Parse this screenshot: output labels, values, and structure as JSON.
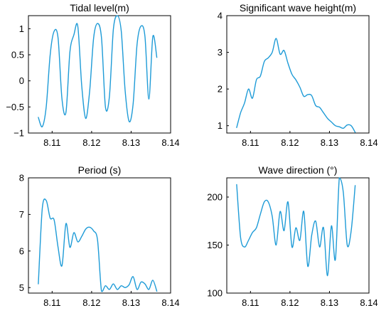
{
  "figure": {
    "line_color": "#1e9bd7"
  },
  "chart_data": [
    {
      "type": "line",
      "title": "Tidal level(m)",
      "xlim": [
        8.104,
        8.14
      ],
      "ylim": [
        -1.0,
        1.25
      ],
      "xticks": [
        "8.11",
        "8.12",
        "8.13",
        "8.14"
      ],
      "yticks": [
        "1",
        "0.5",
        "0",
        "−0.5",
        "−1"
      ],
      "grid": false,
      "x": [
        8.1065,
        8.1075,
        8.1085,
        8.1095,
        8.1105,
        8.1115,
        8.1125,
        8.1135,
        8.1145,
        8.1155,
        8.1165,
        8.1175,
        8.1185,
        8.1195,
        8.1205,
        8.1215,
        8.1225,
        8.1235,
        8.1245,
        8.1255,
        8.1265,
        8.1275,
        8.1285,
        8.1295,
        8.1305,
        8.1315,
        8.1325,
        8.1335,
        8.1345,
        8.1355,
        8.1365
      ],
      "y": [
        -0.7,
        -0.88,
        -0.5,
        0.5,
        0.95,
        0.82,
        -0.35,
        -0.6,
        0.55,
        0.88,
        1.05,
        -0.1,
        -0.72,
        -0.2,
        0.82,
        1.1,
        0.82,
        -0.5,
        -0.3,
        0.98,
        1.25,
        0.95,
        -0.2,
        -0.78,
        -0.45,
        0.7,
        1.05,
        0.85,
        -0.35,
        0.85,
        0.45
      ]
    },
    {
      "type": "line",
      "title": "Significant wave height(m)",
      "xlim": [
        8.104,
        8.14
      ],
      "ylim": [
        0.8,
        4.0
      ],
      "xticks": [
        "8.11",
        "8.12",
        "8.13",
        "8.14"
      ],
      "yticks": [
        "4",
        "3",
        "2",
        "1"
      ],
      "grid": false,
      "x": [
        8.1065,
        8.1075,
        8.1085,
        8.1095,
        8.1105,
        8.1115,
        8.1125,
        8.1135,
        8.1145,
        8.1155,
        8.1165,
        8.1175,
        8.1185,
        8.1195,
        8.1205,
        8.1215,
        8.1225,
        8.1235,
        8.1245,
        8.1255,
        8.1265,
        8.1275,
        8.1285,
        8.1295,
        8.1305,
        8.1315,
        8.1325,
        8.1335,
        8.1345,
        8.1355,
        8.1365
      ],
      "y": [
        0.95,
        1.35,
        1.62,
        2.0,
        1.75,
        2.25,
        2.35,
        2.75,
        2.85,
        3.0,
        3.38,
        2.95,
        3.05,
        2.7,
        2.4,
        2.25,
        2.05,
        1.8,
        1.85,
        1.82,
        1.55,
        1.5,
        1.35,
        1.2,
        1.1,
        1.0,
        0.97,
        0.93,
        1.02,
        1.0,
        0.82
      ]
    },
    {
      "type": "line",
      "title": "Period (s)",
      "xlim": [
        8.104,
        8.14
      ],
      "ylim": [
        4.85,
        8.0
      ],
      "xticks": [
        "8.11",
        "8.12",
        "8.13",
        "8.14"
      ],
      "yticks": [
        "8",
        "7",
        "6",
        "5"
      ],
      "grid": false,
      "x": [
        8.1065,
        8.1075,
        8.1085,
        8.1095,
        8.1105,
        8.1115,
        8.1125,
        8.1135,
        8.1145,
        8.1155,
        8.1165,
        8.1175,
        8.1185,
        8.1195,
        8.1205,
        8.1215,
        8.1225,
        8.1235,
        8.1245,
        8.1255,
        8.1265,
        8.1275,
        8.1285,
        8.1295,
        8.1305,
        8.1315,
        8.1325,
        8.1335,
        8.1345,
        8.1355,
        8.1365
      ],
      "y": [
        5.1,
        7.15,
        7.38,
        6.9,
        6.85,
        6.1,
        5.6,
        6.75,
        6.1,
        6.5,
        6.25,
        6.4,
        6.6,
        6.65,
        6.55,
        6.3,
        4.9,
        5.05,
        4.95,
        5.1,
        4.95,
        5.05,
        5.0,
        5.08,
        5.3,
        4.95,
        5.15,
        5.1,
        4.95,
        5.2,
        4.9
      ]
    },
    {
      "type": "line",
      "title": "Wave direction (°)",
      "xlim": [
        8.104,
        8.14
      ],
      "ylim": [
        100,
        220
      ],
      "xticks": [
        "8.11",
        "8.12",
        "8.13",
        "8.14"
      ],
      "yticks": [
        "200",
        "150",
        "100"
      ],
      "grid": false,
      "x": [
        8.1065,
        8.1075,
        8.1085,
        8.1095,
        8.1105,
        8.1115,
        8.1125,
        8.1135,
        8.1145,
        8.1155,
        8.1165,
        8.1175,
        8.1185,
        8.1195,
        8.1205,
        8.1215,
        8.1225,
        8.1235,
        8.1245,
        8.1255,
        8.1265,
        8.1275,
        8.1285,
        8.1295,
        8.1305,
        8.1315,
        8.1325,
        8.1335,
        8.1345,
        8.1355,
        8.1365
      ],
      "y": [
        213,
        158,
        148,
        155,
        163,
        168,
        182,
        195,
        195,
        180,
        150,
        185,
        165,
        195,
        148,
        168,
        155,
        185,
        128,
        160,
        175,
        148,
        168,
        118,
        170,
        135,
        220,
        205,
        150,
        165,
        212
      ]
    }
  ]
}
